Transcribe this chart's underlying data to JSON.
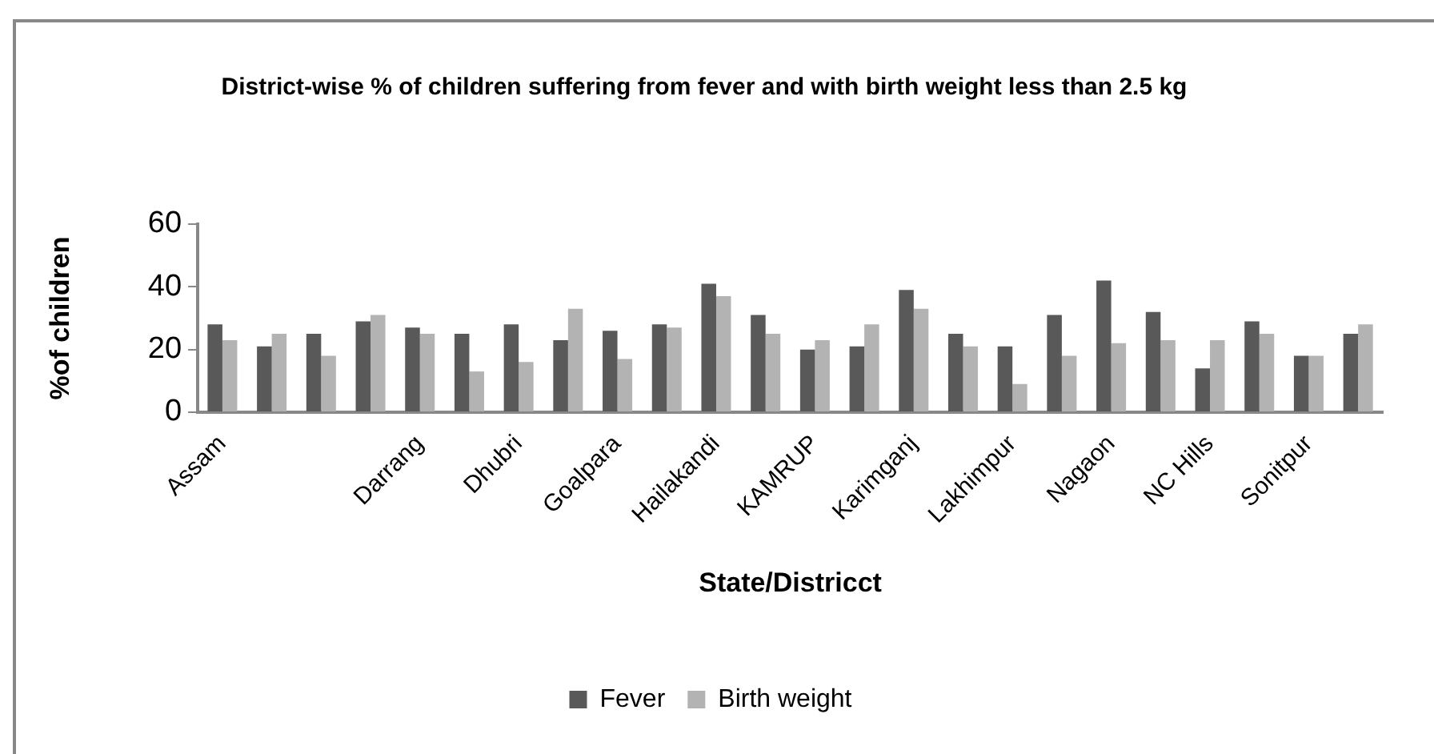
{
  "chart_data": {
    "type": "bar",
    "title": "District-wise % of children suffering from fever and with birth weight less than 2.5 kg",
    "xlabel": "State/Districct",
    "ylabel": "%of children",
    "categories": [
      "Assam",
      null,
      null,
      null,
      "Darrang",
      null,
      "Dhubri",
      null,
      "Goalpara",
      null,
      "Hailakandi",
      null,
      "KAMRUP",
      null,
      "Karimganj",
      null,
      "Lakhimpur",
      null,
      "Nagaon",
      null,
      "NC Hills",
      null,
      "Sonitpur",
      null
    ],
    "series": [
      {
        "name": "Fever",
        "color": "#595959",
        "values": [
          28,
          21,
          25,
          29,
          27,
          25,
          28,
          23,
          26,
          28,
          41,
          31,
          20,
          21,
          39,
          25,
          21,
          31,
          42,
          32,
          14,
          29,
          18,
          25
        ]
      },
      {
        "name": "Birth weight",
        "color": "#b3b3b3",
        "values": [
          23,
          25,
          18,
          31,
          25,
          13,
          16,
          33,
          17,
          27,
          37,
          25,
          23,
          28,
          33,
          21,
          9,
          18,
          22,
          23,
          23,
          25,
          18,
          28
        ]
      }
    ],
    "ylim": [
      0,
      60
    ],
    "yticks": [
      0,
      20,
      40,
      60
    ],
    "grid": false,
    "legend": "bottom"
  }
}
